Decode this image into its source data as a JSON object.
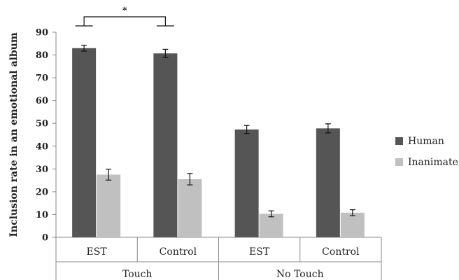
{
  "chart_data": {
    "type": "bar",
    "title": "",
    "xlabel": "",
    "ylabel": "Inclusion rate in an emotional album",
    "ylim": [
      0,
      90
    ],
    "yticks": [
      0,
      10,
      20,
      30,
      40,
      50,
      60,
      70,
      80,
      90
    ],
    "grid": false,
    "legend_position": "right",
    "categories": [
      "EST",
      "Control",
      "EST",
      "Control"
    ],
    "groups": [
      {
        "label": "Touch",
        "categories": [
          "EST",
          "Control"
        ]
      },
      {
        "label": "No Touch",
        "categories": [
          "EST",
          "Control"
        ]
      }
    ],
    "series": [
      {
        "name": "Human",
        "color": "#555555",
        "values": [
          83,
          80.7,
          47.3,
          47.8
        ],
        "errors": [
          1.3,
          1.8,
          1.8,
          2.0
        ]
      },
      {
        "name": "Inanimate",
        "color": "#c0c0c0",
        "values": [
          27.5,
          25.5,
          10.3,
          10.8
        ],
        "errors": [
          2.4,
          2.5,
          1.3,
          1.3
        ]
      }
    ],
    "annotations": [
      {
        "type": "significance",
        "text": "*",
        "between": [
          "Touch EST",
          "Touch Control"
        ]
      }
    ]
  }
}
